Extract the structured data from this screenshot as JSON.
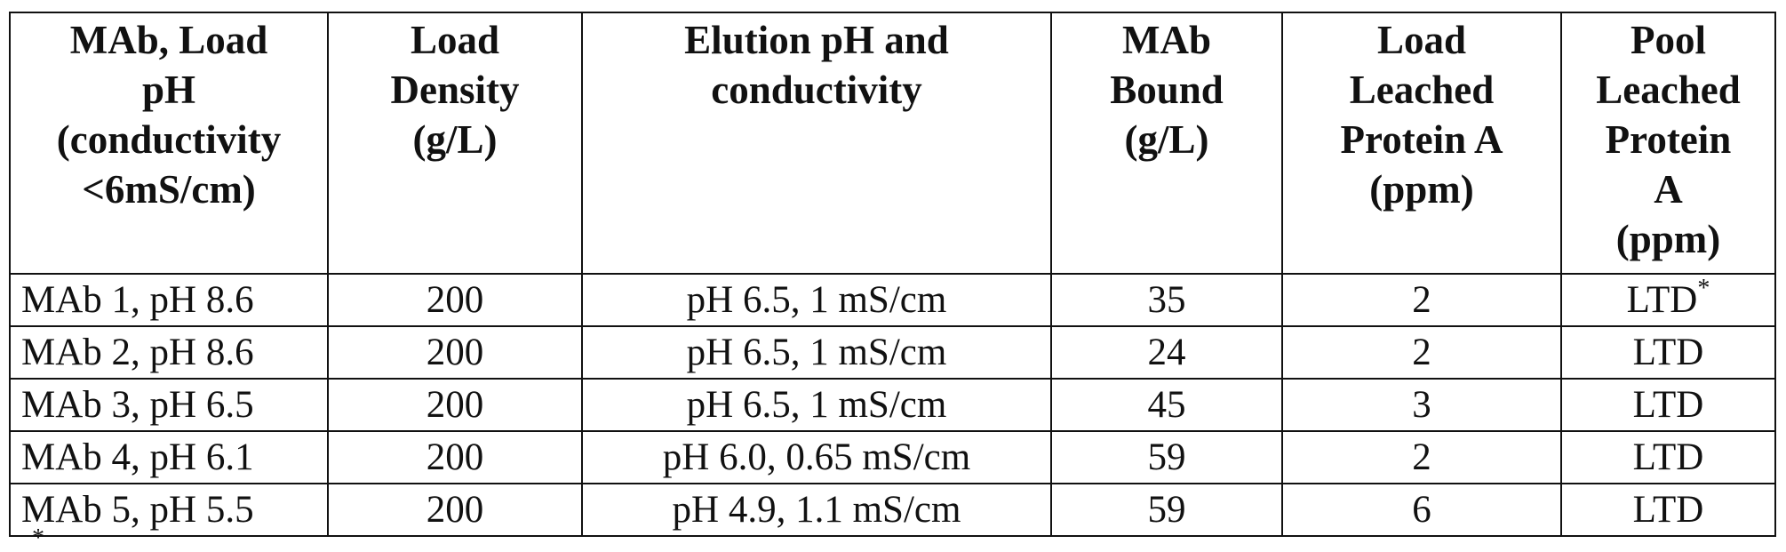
{
  "table": {
    "header": [
      [
        "MAb, Load",
        "pH",
        "(conductivity",
        "<6mS/cm)"
      ],
      [
        "Load",
        "Density",
        "(g/L)"
      ],
      [
        "Elution pH and",
        "conductivity"
      ],
      [
        "MAb",
        "Bound",
        "(g/L)"
      ],
      [
        "Load",
        "Leached",
        "Protein A",
        "(ppm)"
      ],
      [
        "Pool",
        "Leached",
        "Protein",
        "A",
        "(ppm)"
      ]
    ],
    "rows": [
      [
        "MAb 1, pH 8.6",
        "200",
        "pH 6.5, 1 mS/cm",
        "35",
        "2",
        "LTD"
      ],
      [
        "MAb 2, pH 8.6",
        "200",
        "pH 6.5, 1 mS/cm",
        "24",
        "2",
        "LTD"
      ],
      [
        "MAb 3, pH 6.5",
        "200",
        "pH 6.5, 1 mS/cm",
        "45",
        "3",
        "LTD"
      ],
      [
        "MAb 4, pH 6.1",
        "200",
        "pH 6.0, 0.65 mS/cm",
        "59",
        "2",
        "LTD"
      ],
      [
        "MAb 5, pH 5.5",
        "200",
        "pH 4.9, 1.1 mS/cm",
        "59",
        "6",
        "LTD"
      ]
    ],
    "note_ref": "*",
    "footnote": "*"
  }
}
